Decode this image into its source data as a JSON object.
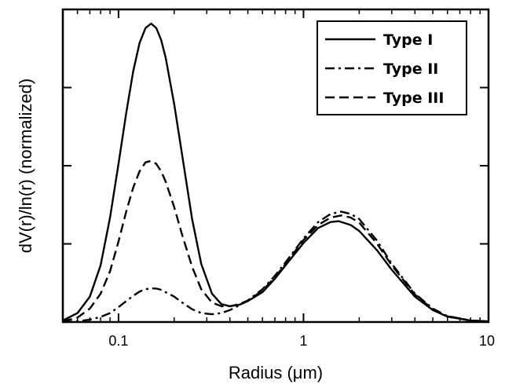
{
  "chart_data": {
    "type": "line",
    "title": "",
    "xlabel": "Radius (μm)",
    "ylabel": "dV(r)/ln(r) (normalized)",
    "xscale": "log",
    "xlim": [
      0.05,
      10
    ],
    "ylim": [
      0,
      1.0
    ],
    "x_ticks": [
      {
        "value": 0.1,
        "label": "0.1"
      },
      {
        "value": 1,
        "label": "1"
      },
      {
        "value": 10,
        "label": "10"
      }
    ],
    "y_ticks_labeled": false,
    "grid": false,
    "legend": {
      "position": "top-right"
    },
    "series": [
      {
        "name": "Type I",
        "style": "solid",
        "x": [
          0.05,
          0.06,
          0.07,
          0.08,
          0.09,
          0.1,
          0.11,
          0.12,
          0.13,
          0.14,
          0.15,
          0.16,
          0.17,
          0.18,
          0.2,
          0.22,
          0.25,
          0.28,
          0.32,
          0.36,
          0.4,
          0.45,
          0.5,
          0.6,
          0.7,
          0.8,
          1.0,
          1.2,
          1.4,
          1.55,
          1.8,
          2.0,
          2.5,
          3.0,
          4.0,
          5.0,
          6.0,
          8.0,
          10.0
        ],
        "values": [
          0.005,
          0.03,
          0.085,
          0.19,
          0.35,
          0.53,
          0.7,
          0.84,
          0.935,
          0.985,
          1.0,
          0.985,
          0.945,
          0.885,
          0.73,
          0.565,
          0.345,
          0.195,
          0.095,
          0.06,
          0.053,
          0.058,
          0.07,
          0.1,
          0.145,
          0.19,
          0.265,
          0.315,
          0.335,
          0.338,
          0.325,
          0.305,
          0.24,
          0.175,
          0.085,
          0.04,
          0.018,
          0.005,
          0.002
        ]
      },
      {
        "name": "Type II",
        "style": "dash-dot",
        "x": [
          0.05,
          0.06,
          0.07,
          0.08,
          0.09,
          0.1,
          0.11,
          0.12,
          0.13,
          0.14,
          0.15,
          0.16,
          0.17,
          0.18,
          0.2,
          0.22,
          0.25,
          0.28,
          0.32,
          0.36,
          0.4,
          0.45,
          0.5,
          0.6,
          0.7,
          0.8,
          1.0,
          1.2,
          1.4,
          1.6,
          1.8,
          2.0,
          2.5,
          3.0,
          4.0,
          5.0,
          6.0,
          8.0,
          10.0
        ],
        "values": [
          0.0,
          0.003,
          0.008,
          0.017,
          0.03,
          0.05,
          0.07,
          0.088,
          0.102,
          0.11,
          0.113,
          0.112,
          0.108,
          0.1,
          0.085,
          0.066,
          0.043,
          0.03,
          0.026,
          0.03,
          0.04,
          0.056,
          0.072,
          0.11,
          0.155,
          0.2,
          0.28,
          0.335,
          0.362,
          0.37,
          0.362,
          0.345,
          0.272,
          0.195,
          0.095,
          0.045,
          0.02,
          0.005,
          0.002
        ]
      },
      {
        "name": "Type III",
        "style": "dashed",
        "x": [
          0.05,
          0.06,
          0.07,
          0.08,
          0.09,
          0.1,
          0.11,
          0.12,
          0.13,
          0.14,
          0.15,
          0.16,
          0.17,
          0.18,
          0.2,
          0.22,
          0.25,
          0.28,
          0.32,
          0.36,
          0.4,
          0.45,
          0.5,
          0.6,
          0.7,
          0.8,
          1.0,
          1.2,
          1.4,
          1.6,
          1.8,
          2.0,
          2.5,
          3.0,
          4.0,
          5.0,
          6.0,
          8.0,
          10.0
        ],
        "values": [
          0.002,
          0.015,
          0.045,
          0.095,
          0.17,
          0.27,
          0.37,
          0.45,
          0.505,
          0.535,
          0.54,
          0.53,
          0.505,
          0.47,
          0.385,
          0.295,
          0.185,
          0.11,
          0.065,
          0.053,
          0.053,
          0.06,
          0.072,
          0.105,
          0.15,
          0.195,
          0.275,
          0.325,
          0.35,
          0.357,
          0.35,
          0.333,
          0.262,
          0.19,
          0.092,
          0.043,
          0.019,
          0.005,
          0.002
        ]
      }
    ]
  }
}
